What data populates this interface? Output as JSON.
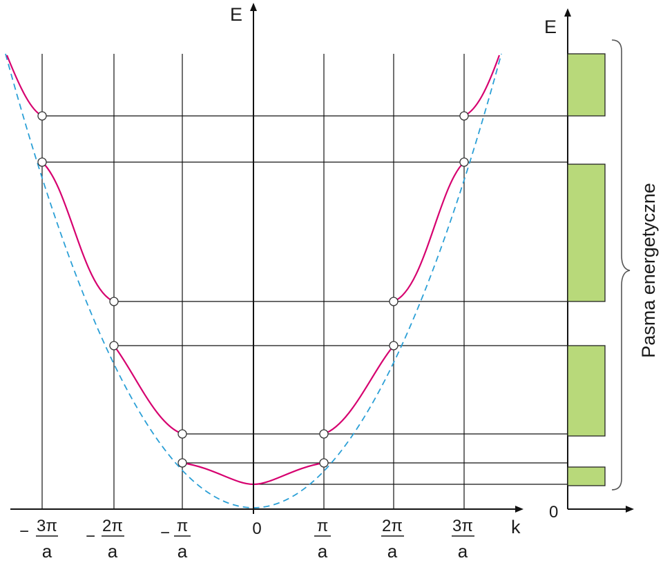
{
  "main_plot": {
    "y_axis_label": "E",
    "x_axis_label": "k",
    "origin_label": "0",
    "ticks": [
      {
        "sign": "−",
        "num": "3π",
        "den": "a"
      },
      {
        "sign": "−",
        "num": "2π",
        "den": "a"
      },
      {
        "sign": "−",
        "num": "π",
        "den": "a"
      },
      {
        "sign": "",
        "num": "0",
        "den": ""
      },
      {
        "sign": "",
        "num": "π",
        "den": "a"
      },
      {
        "sign": "",
        "num": "2π",
        "den": "a"
      },
      {
        "sign": "",
        "num": "3π",
        "den": "a"
      }
    ]
  },
  "band_panel": {
    "y_axis_label": "E",
    "origin_label": "0",
    "caption": "Pasma energetyczne",
    "band_color": "#b8d97a"
  },
  "colors": {
    "band_curve": "#d6006f",
    "free_electron_parabola": "#2a9fd6",
    "axes": "#111111"
  }
}
